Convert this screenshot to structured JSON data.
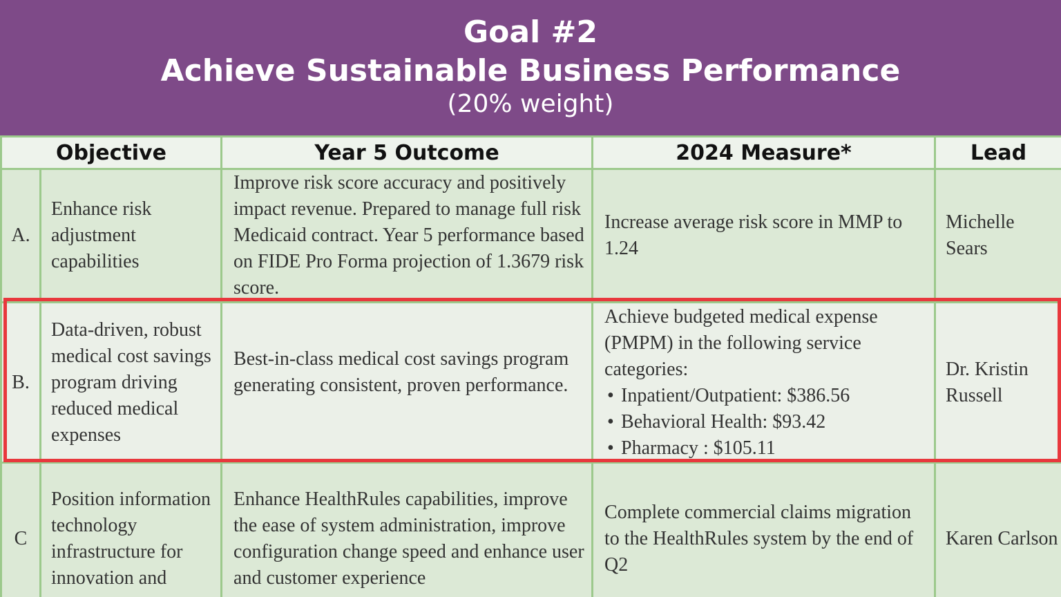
{
  "header": {
    "goal": "Goal #2",
    "title": "Achieve Sustainable Business Performance",
    "weight": "(20% weight)",
    "background_color": "#7e4a88"
  },
  "table": {
    "columns": [
      "Objective",
      "Year 5 Outcome",
      "2024 Measure*",
      "Lead"
    ],
    "rows": [
      {
        "letter": "A.",
        "objective": "Enhance risk adjustment capabilities",
        "outcome": "Improve risk score accuracy and positively impact revenue. Prepared to manage full risk Medicaid contract. Year 5 performance based on FIDE Pro Forma projection of 1.3679 risk score.",
        "measure": "Increase average risk score in MMP to 1.24",
        "lead": "Michelle Sears"
      },
      {
        "letter": "B.",
        "objective": "Data-driven, robust medical cost savings program driving reduced medical expenses",
        "outcome": "Best-in-class medical cost savings program generating consistent, proven performance.",
        "measure_intro": "Achieve budgeted medical expense (PMPM) in the following service categories:",
        "measure_items": [
          "Inpatient/Outpatient: $386.56",
          "Behavioral Health: $93.42",
          "Pharmacy : $105.11"
        ],
        "lead": "Dr. Kristin Russell",
        "highlighted": true
      },
      {
        "letter": "C",
        "objective": "Position information technology infrastructure for innovation and",
        "outcome": "Enhance HealthRules capabilities, improve the ease of system administration, improve configuration change speed and enhance user and customer experience",
        "measure": "Complete commercial claims migration to the HealthRules system by the end of Q2",
        "lead": "Karen Carlson"
      }
    ]
  },
  "colors": {
    "cell_fill": "#dce9d6",
    "highlight_row_fill": "#ebf0e8",
    "header_row_fill": "#eef3ec",
    "grid_border": "#9cc98c",
    "highlight_border": "#e8383d"
  }
}
